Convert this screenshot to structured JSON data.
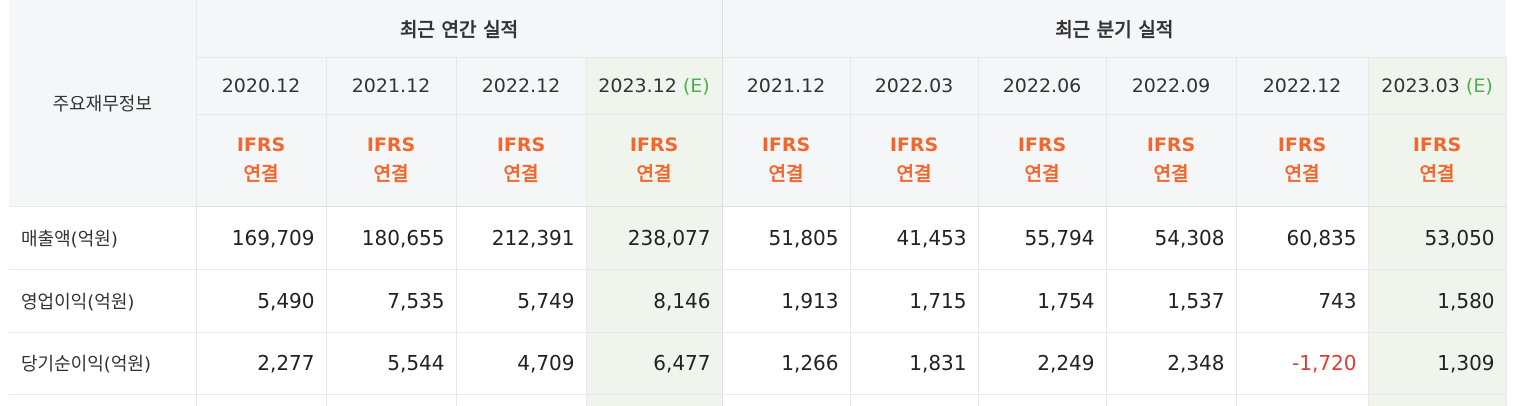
{
  "table": {
    "row_header_title": "주요재무정보",
    "groups": [
      {
        "title": "최근 연간 실적"
      },
      {
        "title": "최근 분기 실적"
      }
    ],
    "periods": [
      {
        "date": "2020.12",
        "estimate": ""
      },
      {
        "date": "2021.12",
        "estimate": ""
      },
      {
        "date": "2022.12",
        "estimate": ""
      },
      {
        "date": "2023.12",
        "estimate": "(E)"
      },
      {
        "date": "2021.12",
        "estimate": ""
      },
      {
        "date": "2022.03",
        "estimate": ""
      },
      {
        "date": "2022.06",
        "estimate": ""
      },
      {
        "date": "2022.09",
        "estimate": ""
      },
      {
        "date": "2022.12",
        "estimate": ""
      },
      {
        "date": "2023.03",
        "estimate": "(E)"
      }
    ],
    "standard": {
      "line1": "IFRS",
      "line2": "연결"
    },
    "rows": [
      {
        "label": "매출액(억원)",
        "values": [
          "169,709",
          "180,655",
          "212,391",
          "238,077",
          "51,805",
          "41,453",
          "55,794",
          "54,308",
          "60,835",
          "53,050"
        ]
      },
      {
        "label": "영업이익(억원)",
        "values": [
          "5,490",
          "7,535",
          "5,749",
          "8,146",
          "1,913",
          "1,715",
          "1,754",
          "1,537",
          "743",
          "1,580"
        ]
      },
      {
        "label": "당기순이익(억원)",
        "values": [
          "2,277",
          "5,544",
          "4,709",
          "6,477",
          "1,266",
          "1,831",
          "2,249",
          "2,348",
          "-1,720",
          "1,309"
        ]
      }
    ],
    "colors": {
      "header_bg": "#f5f6f8",
      "estimate_column_bg": "#eff5ec",
      "standard_text": "#f2672e",
      "estimate_text": "#4caf50",
      "negative_text": "#e53935"
    }
  }
}
